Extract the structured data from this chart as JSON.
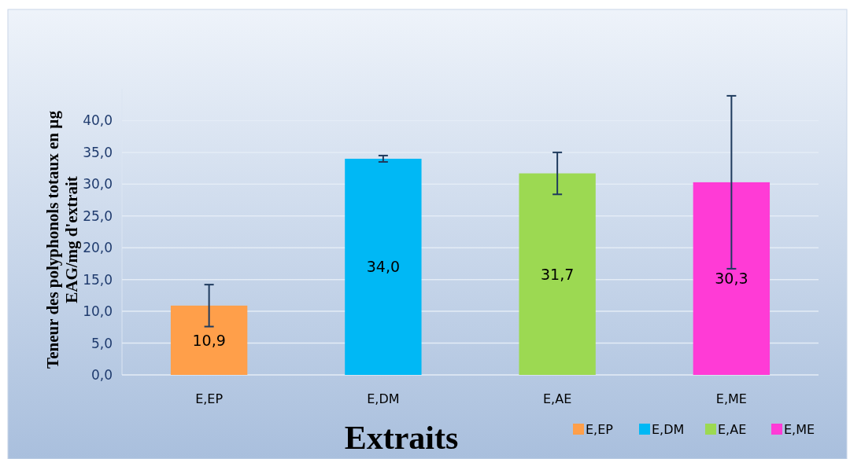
{
  "chart_data": {
    "type": "bar",
    "xlabel": "Extraits",
    "ylabel": "Teneur des polyphonols totaux en µg\nEAG/mg d'extrait",
    "categories": [
      "E,EP",
      "E,DM",
      "E,AE",
      "E,ME"
    ],
    "series": [
      {
        "name": "E,EP",
        "color": "#ff9f4a",
        "values": [
          10.9,
          null,
          null,
          null
        ],
        "errors": [
          3.3,
          null,
          null,
          null
        ],
        "value_labels": [
          "10,9",
          null,
          null,
          null
        ]
      },
      {
        "name": "E,DM",
        "color": "#00b8f5",
        "values": [
          null,
          34.0,
          null,
          null
        ],
        "errors": [
          null,
          0.5,
          null,
          null
        ],
        "value_labels": [
          null,
          "34,0",
          null,
          null
        ]
      },
      {
        "name": "E,AE",
        "color": "#9cd952",
        "values": [
          null,
          null,
          31.7,
          null
        ],
        "errors": [
          null,
          null,
          3.3,
          null
        ],
        "value_labels": [
          null,
          null,
          "31,7",
          null
        ]
      },
      {
        "name": "E,ME",
        "color": "#ff3bd6",
        "values": [
          null,
          null,
          null,
          30.3
        ],
        "errors": [
          null,
          null,
          null,
          13.6
        ],
        "value_labels": [
          null,
          null,
          null,
          "30,3"
        ]
      }
    ],
    "ylim": [
      0,
      45
    ],
    "yticks": [
      {
        "value": 0,
        "label": "0,0"
      },
      {
        "value": 5,
        "label": "5,0"
      },
      {
        "value": 10,
        "label": "10,0"
      },
      {
        "value": 15,
        "label": "15,0"
      },
      {
        "value": 20,
        "label": "20,0"
      },
      {
        "value": 25,
        "label": "25,0"
      },
      {
        "value": 30,
        "label": "30,0"
      },
      {
        "value": 35,
        "label": "35,0"
      },
      {
        "value": 40,
        "label": "40,0"
      }
    ],
    "grid": "y",
    "legend": "bottom right"
  }
}
